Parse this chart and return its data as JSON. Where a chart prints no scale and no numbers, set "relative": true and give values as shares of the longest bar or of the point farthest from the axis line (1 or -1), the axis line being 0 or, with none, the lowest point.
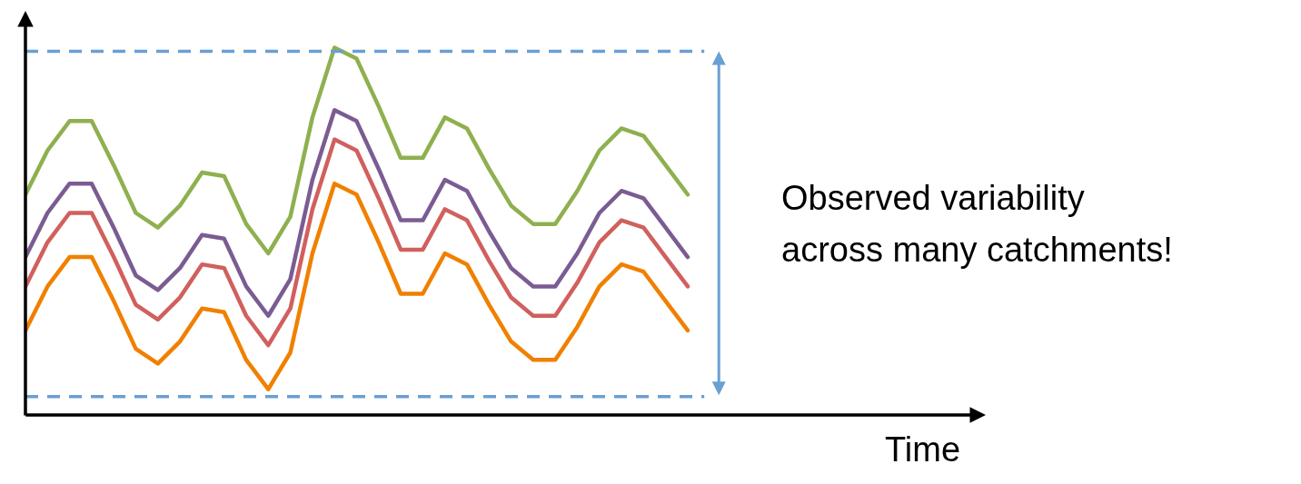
{
  "chart_data": {
    "type": "line",
    "relative": true,
    "categories": [
      null,
      null,
      null,
      null,
      null,
      null,
      null,
      null,
      null,
      null,
      null,
      null,
      null,
      null,
      null,
      null,
      null,
      null,
      null,
      null,
      null,
      null,
      null,
      null,
      null,
      null,
      null,
      null,
      null,
      null,
      null
    ],
    "series": [
      {
        "color": "#8eb04f",
        "values": [
          0.6,
          0.72,
          0.8,
          0.8,
          0.68,
          0.55,
          0.51,
          0.57,
          0.66,
          0.65,
          0.52,
          0.44,
          0.54,
          0.81,
          1.0,
          0.97,
          0.84,
          0.7,
          0.7,
          0.81,
          0.78,
          0.67,
          0.57,
          0.52,
          0.52,
          0.61,
          0.72,
          0.78,
          0.76,
          0.68,
          0.6
        ]
      },
      {
        "color": "#7b5c92",
        "values": [
          0.43,
          0.55,
          0.63,
          0.63,
          0.51,
          0.38,
          0.34,
          0.4,
          0.49,
          0.48,
          0.35,
          0.27,
          0.37,
          0.64,
          0.83,
          0.8,
          0.67,
          0.53,
          0.53,
          0.64,
          0.61,
          0.5,
          0.4,
          0.35,
          0.35,
          0.44,
          0.55,
          0.61,
          0.59,
          0.51,
          0.43
        ]
      },
      {
        "color": "#d0605e",
        "values": [
          0.35,
          0.47,
          0.55,
          0.55,
          0.43,
          0.3,
          0.26,
          0.32,
          0.41,
          0.4,
          0.27,
          0.19,
          0.29,
          0.56,
          0.75,
          0.72,
          0.59,
          0.45,
          0.45,
          0.56,
          0.53,
          0.42,
          0.32,
          0.27,
          0.27,
          0.36,
          0.47,
          0.53,
          0.51,
          0.43,
          0.35
        ]
      },
      {
        "color": "#f08000",
        "values": [
          0.23,
          0.35,
          0.43,
          0.43,
          0.31,
          0.18,
          0.14,
          0.2,
          0.29,
          0.28,
          0.15,
          0.07,
          0.17,
          0.44,
          0.63,
          0.6,
          0.47,
          0.33,
          0.33,
          0.44,
          0.41,
          0.3,
          0.2,
          0.15,
          0.15,
          0.24,
          0.35,
          0.41,
          0.39,
          0.31,
          0.23
        ]
      }
    ],
    "ref_lines": [
      {
        "axis": "y",
        "value": 0.99,
        "color": "#6a9fd4",
        "line_style": "dashed"
      },
      {
        "axis": "y",
        "value": 0.05,
        "color": "#6a9fd4",
        "line_style": "dashed"
      }
    ],
    "annotations": [
      "Observed variability",
      "across many catchments!",
      "Time"
    ],
    "marker": "none",
    "line_style": "solid"
  }
}
